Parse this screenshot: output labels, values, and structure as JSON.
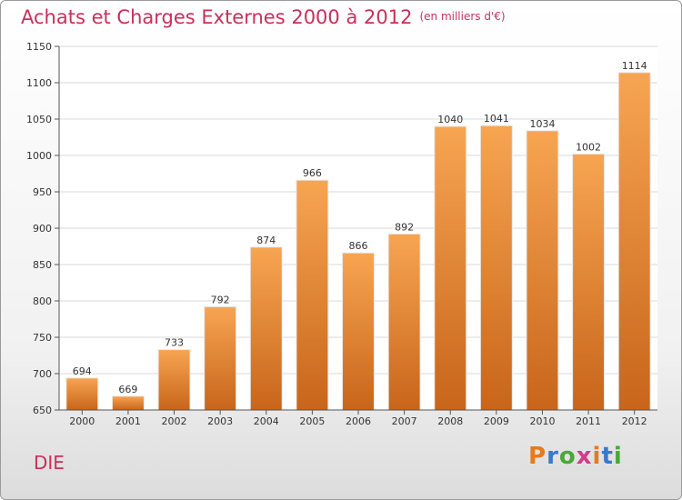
{
  "header": {
    "title": "Achats et Charges Externes 2000 à 2012",
    "subtitle": "(en milliers d'€)"
  },
  "footer": {
    "city": "DIE",
    "logo_letters": [
      "P",
      "r",
      "o",
      "x",
      "i",
      "t",
      "i"
    ],
    "logo_colors": [
      "#e87a1a",
      "#3a78c8",
      "#4aa83a",
      "#d23a8a",
      "#e87a1a",
      "#3a78c8",
      "#4aa83a"
    ]
  },
  "chart_data": {
    "type": "bar",
    "title": "Achats et Charges Externes 2000 à 2012",
    "subtitle": "(en milliers d'€)",
    "categories": [
      "2000",
      "2001",
      "2002",
      "2003",
      "2004",
      "2005",
      "2006",
      "2007",
      "2008",
      "2009",
      "2010",
      "2011",
      "2012"
    ],
    "values": [
      694,
      669,
      733,
      792,
      874,
      966,
      866,
      892,
      1040,
      1041,
      1034,
      1002,
      1114
    ],
    "ylim": [
      650,
      1150
    ],
    "yticks": [
      650,
      700,
      750,
      800,
      850,
      900,
      950,
      1000,
      1050,
      1100,
      1150
    ],
    "grid": true,
    "bar_color": "#f0943a"
  }
}
